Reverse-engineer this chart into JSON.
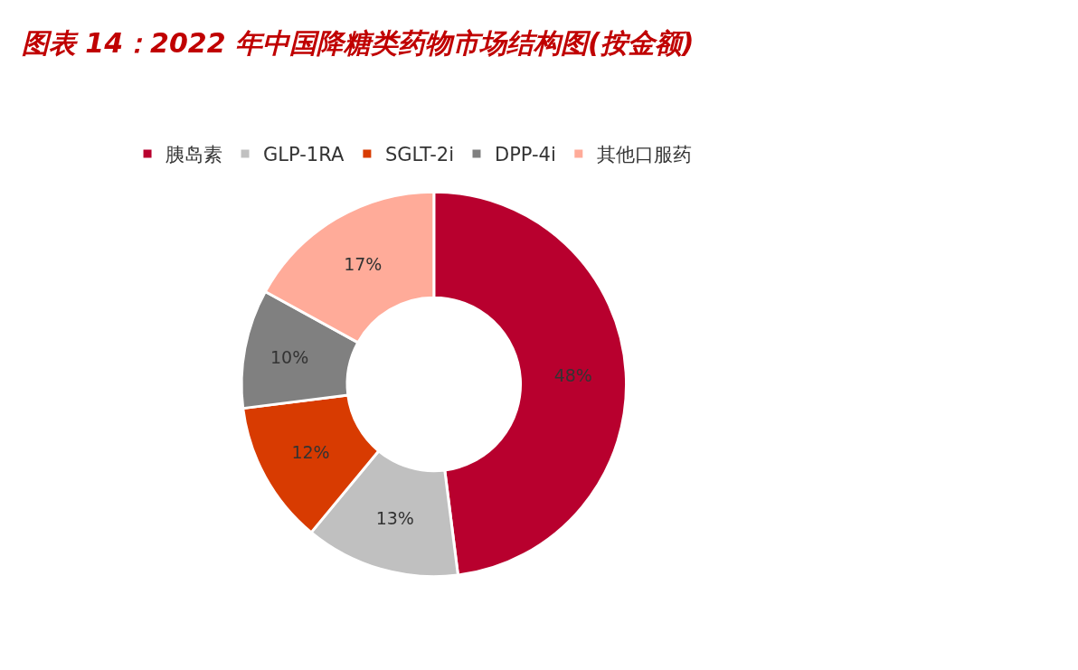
{
  "chart_data": {
    "type": "donut",
    "title": "图表 14：2022 年中国降糖类药物市场结构图(按金额)",
    "categories": [
      "胰岛素",
      "GLP-1RA",
      "SGLT-2i",
      "DPP-4i",
      "其他口服药"
    ],
    "values": [
      48,
      13,
      12,
      10,
      17
    ],
    "colors": [
      "#b8002e",
      "#c0c0c0",
      "#d83b01",
      "#808080",
      "#ffab99"
    ],
    "value_labels": [
      "48%",
      "13%",
      "12%",
      "10%",
      "17%"
    ],
    "legend": "top"
  }
}
